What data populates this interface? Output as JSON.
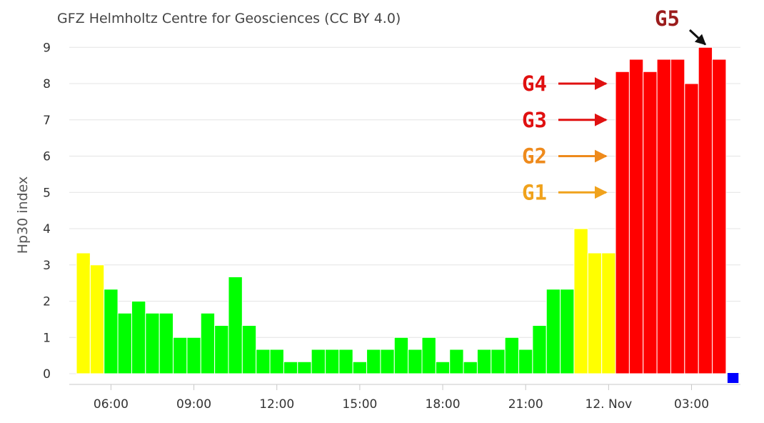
{
  "chart_data": {
    "type": "bar",
    "credit": "GFZ Helmholtz Centre for Geosciences (CC BY 4.0)",
    "ylabel": "Hp30 index",
    "ylim": [
      0,
      9
    ],
    "yticks": [
      "0",
      "1",
      "2",
      "3",
      "4",
      "5",
      "6",
      "7",
      "8",
      "9"
    ],
    "xticks": [
      {
        "label": "06:00",
        "bar": 2.5
      },
      {
        "label": "09:00",
        "bar": 8.5
      },
      {
        "label": "12:00",
        "bar": 14.5
      },
      {
        "label": "15:00",
        "bar": 20.5
      },
      {
        "label": "18:00",
        "bar": 26.5
      },
      {
        "label": "21:00",
        "bar": 32.5
      },
      {
        "label": "12. Nov",
        "bar": 38.5
      },
      {
        "label": "03:00",
        "bar": 44.5
      }
    ],
    "values": [
      3.33,
      3.0,
      2.33,
      1.67,
      2.0,
      1.67,
      1.67,
      1.0,
      1.0,
      1.67,
      1.33,
      2.67,
      1.33,
      0.67,
      0.67,
      0.33,
      0.33,
      0.67,
      0.67,
      0.67,
      0.33,
      0.67,
      0.67,
      1.0,
      0.67,
      1.0,
      0.33,
      0.67,
      0.33,
      0.67,
      0.67,
      1.0,
      0.67,
      1.33,
      2.33,
      2.33,
      4.0,
      3.33,
      3.33,
      8.33,
      8.67,
      8.33,
      8.67,
      8.67,
      8.0,
      9.0,
      8.67,
      0.0
    ],
    "colors": {
      "green": "#00ff00",
      "yellow": "#ffff00",
      "red": "#ff0000",
      "blue": "#0000ff"
    },
    "annotations": [
      {
        "text": "G5",
        "color": "#9b1c1c",
        "value": 9.0
      },
      {
        "text": "G4",
        "color": "#e01010",
        "value": 8
      },
      {
        "text": "G3",
        "color": "#e01010",
        "value": 7
      },
      {
        "text": "G2",
        "color": "#ee8a1c",
        "value": 6
      },
      {
        "text": "G1",
        "color": "#f0a21c",
        "value": 5
      }
    ]
  }
}
